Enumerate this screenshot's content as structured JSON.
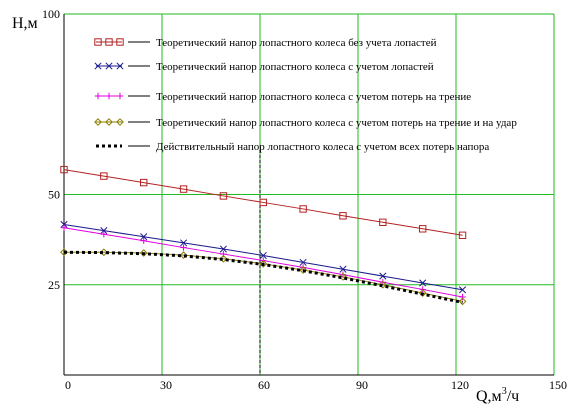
{
  "chart_data": {
    "type": "line",
    "ylabel": "H,м",
    "xlabel_base": "Q,м",
    "xlabel_sup": "3",
    "xlabel_tail": "/ч",
    "xlim": [
      0,
      150
    ],
    "ylim": [
      0,
      100
    ],
    "xticks": [
      0,
      30,
      60,
      90,
      120,
      150
    ],
    "yticks": [
      25,
      50,
      100
    ],
    "grid": true,
    "legend_position": "top",
    "marker_line_x": 60,
    "series": [
      {
        "name": "Теоретический напор лопастного колеса без учета лопастей",
        "color": "#b22222",
        "marker": "square",
        "x": [
          0,
          12.2,
          24.4,
          36.6,
          48.8,
          61,
          73.2,
          85.4,
          97.6,
          109.8,
          122
        ],
        "y": [
          56.9,
          55.1,
          53.3,
          51.5,
          49.6,
          47.8,
          46,
          44.1,
          42.3,
          40.5,
          38.7
        ]
      },
      {
        "name": "Теоретический напор лопастного колеса с учетом лопастей",
        "color": "#1a1a8c",
        "marker": "x",
        "x": [
          0,
          12.2,
          24.4,
          36.6,
          48.8,
          61,
          73.2,
          85.4,
          97.6,
          109.8,
          122
        ],
        "y": [
          41.7,
          40,
          38.3,
          36.6,
          34.9,
          33.1,
          31.2,
          29.3,
          27.4,
          25.5,
          23.6
        ]
      },
      {
        "name": "Теоретический напор лопастного колеса с учетом потерь на трение",
        "color": "#e000e0",
        "marker": "plus",
        "x": [
          0,
          12.2,
          24.4,
          36.6,
          48.8,
          61,
          73.2,
          85.4,
          97.6,
          109.8,
          122
        ],
        "y": [
          40.8,
          39,
          37.2,
          35.3,
          33.5,
          31.7,
          29.8,
          27.8,
          25.7,
          23.7,
          21.6
        ]
      },
      {
        "name": "Теоретический напор лопастного колеса с учетом потерь на трение и на удар",
        "color": "#8b7d00",
        "marker": "diamond",
        "x": [
          0,
          12.2,
          24.4,
          36.6,
          48.8,
          61,
          73.2,
          85.4,
          97.6,
          109.8,
          122
        ],
        "y": [
          34,
          34,
          33.8,
          33.2,
          32.2,
          30.8,
          29.1,
          27.2,
          25,
          22.7,
          20.4
        ]
      },
      {
        "name": "Действительный напор лопастного колеса с учетом всех потерь напора",
        "color": "#000000",
        "marker": "dot",
        "x": [
          0,
          12.2,
          24.4,
          36.6,
          48.8,
          61,
          73.2,
          85.4,
          97.6,
          109.8,
          122
        ],
        "y": [
          34,
          33.9,
          33.6,
          33,
          32,
          30.6,
          28.9,
          26.9,
          24.7,
          22.4,
          20.1
        ]
      }
    ]
  }
}
